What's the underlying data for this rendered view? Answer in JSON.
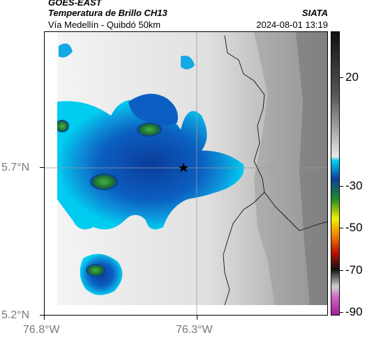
{
  "header": {
    "satellite": "GOES-EAST",
    "product": "Temperatura de Brillo CH13",
    "org": "SIATA",
    "route": "Vía Medellín - Quibdó 50km",
    "datetime": "2024-08-01 13:19"
  },
  "axes": {
    "lat_labels": [
      "5.7°N",
      "5.2°N"
    ],
    "lon_labels": [
      "76.8°W",
      "76.3°W"
    ]
  },
  "colorbar": {
    "labels": [
      "20",
      "-30",
      "-50",
      "-70",
      "-90"
    ],
    "stops": [
      "#ffffff",
      "#d9d9d9",
      "#9c9c9c",
      "#555555",
      "#111111"
    ]
  },
  "map": {
    "center_marker": "star-icon",
    "cloud_color": "#0a3f9a",
    "cold_core_color": "#1f8a2a",
    "bright_edge_color": "#00c8ef",
    "terrain_colors": [
      "#f2f2f2",
      "#d6d6d6",
      "#a8a8a8",
      "#7c7c7c"
    ]
  }
}
